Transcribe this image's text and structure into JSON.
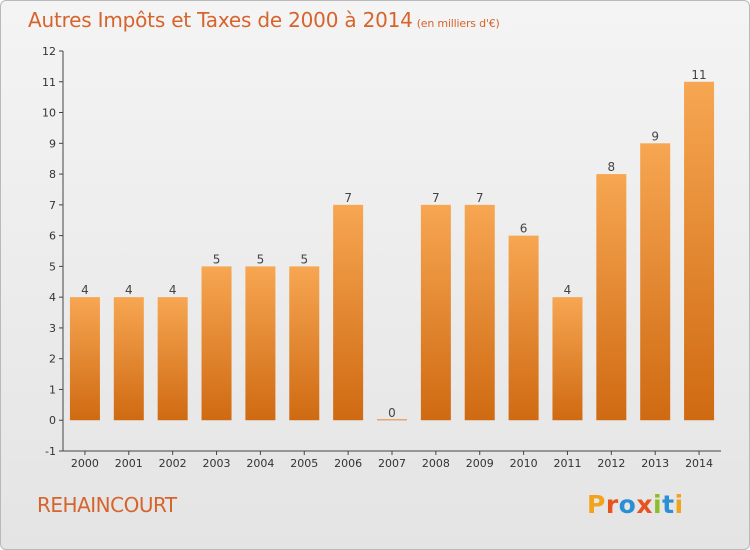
{
  "title": "Autres Impôts et Taxes de 2000 à 2014",
  "subtitle": "(en milliers d'€)",
  "commune": "REHAINCOURT",
  "logo": {
    "letters": [
      "P",
      "r",
      "o",
      "x",
      "i",
      "t",
      "i"
    ],
    "colors": [
      "#f2a31b",
      "#e8521f",
      "#2b8fd6",
      "#e8521f",
      "#8bbf2a",
      "#2b8fd6",
      "#f2a31b"
    ]
  },
  "colors": {
    "bar": "#ef8a2e",
    "text": "#d6642c"
  },
  "chart_data": {
    "type": "bar",
    "categories": [
      "2000",
      "2001",
      "2002",
      "2003",
      "2004",
      "2005",
      "2006",
      "2007",
      "2008",
      "2009",
      "2010",
      "2011",
      "2012",
      "2013",
      "2014"
    ],
    "values": [
      4,
      4,
      4,
      5,
      5,
      5,
      7,
      0,
      7,
      7,
      6,
      4,
      8,
      9,
      11
    ],
    "data_labels": [
      "4",
      "4",
      "4",
      "5",
      "5",
      "5",
      "7",
      "0",
      "7",
      "7",
      "6",
      "4",
      "8",
      "9",
      "11"
    ],
    "ylim": [
      -1,
      12
    ],
    "yticks": [
      "-1",
      "0",
      "1",
      "2",
      "3",
      "4",
      "5",
      "6",
      "7",
      "8",
      "9",
      "10",
      "11",
      "12"
    ],
    "grid": false
  }
}
